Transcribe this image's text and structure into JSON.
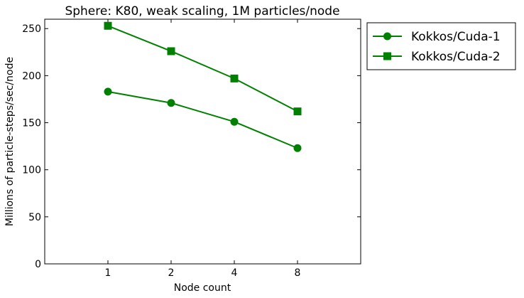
{
  "chart_data": {
    "type": "line",
    "title": "Sphere: K80, weak scaling, 1M particles/node",
    "xlabel": "Node count",
    "ylabel": "Millions of particle-steps/sec/node",
    "x_scale": "log2",
    "categories": [
      "1",
      "2",
      "4",
      "8"
    ],
    "x": [
      1,
      2,
      4,
      8
    ],
    "xlim": [
      0.5,
      16
    ],
    "ylim": [
      0,
      260
    ],
    "yticks": [
      0,
      50,
      100,
      150,
      200,
      250
    ],
    "grid": false,
    "legend_position": "outside-right-top",
    "series": [
      {
        "name": "Kokkos/Cuda-1",
        "marker": "circle",
        "color": "#008000",
        "values": [
          183,
          171,
          151,
          123
        ]
      },
      {
        "name": "Kokkos/Cuda-2",
        "marker": "square",
        "color": "#008000",
        "values": [
          253,
          226,
          197,
          162
        ]
      }
    ]
  }
}
